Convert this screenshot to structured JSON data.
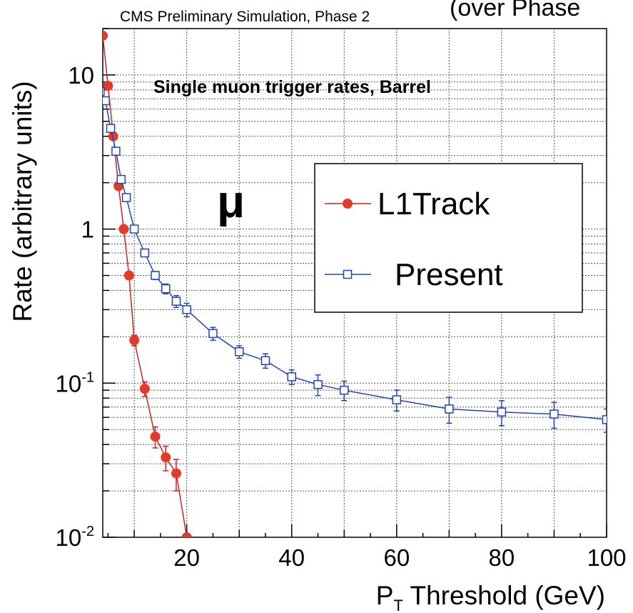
{
  "header": {
    "caption": "CMS Preliminary Simulation, Phase 2",
    "cut_text": "(over Phase"
  },
  "chart_data": {
    "type": "line",
    "title": "Single muon trigger rates, Barrel",
    "annotation": "μ",
    "xlabel": "P",
    "xlabel_sub": "T",
    "xlabel_rest": " Threshold (GeV)",
    "ylabel": "Rate (arbitrary units)",
    "xlim": [
      4,
      100
    ],
    "ylim": [
      0.01,
      20
    ],
    "yscale": "log",
    "grid": true,
    "legend_position": "upper-right",
    "x_ticks": [
      {
        "value": 20,
        "label": "20"
      },
      {
        "value": 40,
        "label": "40"
      },
      {
        "value": 60,
        "label": "60"
      },
      {
        "value": 80,
        "label": "80"
      },
      {
        "value": 100,
        "label": "100"
      }
    ],
    "y_ticks": [
      {
        "value": 10,
        "base": "10",
        "exp": ""
      },
      {
        "value": 1,
        "base": "1",
        "exp": ""
      },
      {
        "value": 0.1,
        "base": "10",
        "exp": "-1"
      },
      {
        "value": 0.01,
        "base": "10",
        "exp": "-2"
      }
    ],
    "series": [
      {
        "name": "L1Track",
        "color": "#cc2222",
        "marker": "filled-circle",
        "x": [
          4,
          5,
          6,
          7,
          8,
          9,
          10,
          12,
          14,
          16,
          18,
          20
        ],
        "y": [
          18,
          8.5,
          4.0,
          1.9,
          1.0,
          0.5,
          0.19,
          0.092,
          0.045,
          0.033,
          0.026,
          0.01
        ],
        "err": [
          0,
          0,
          0,
          0,
          0,
          0,
          0.015,
          0.01,
          0.007,
          0.006,
          0.006,
          0
        ]
      },
      {
        "name": "Present",
        "color": "#2244bb",
        "marker": "open-square",
        "x": [
          3.5,
          4.5,
          5.5,
          6.5,
          7.5,
          8.5,
          10,
          12,
          14,
          16,
          18,
          20,
          25,
          30,
          35,
          40,
          45,
          50,
          60,
          70,
          80,
          90,
          100
        ],
        "y": [
          7.8,
          6.8,
          4.5,
          3.2,
          2.1,
          1.6,
          1.0,
          0.7,
          0.5,
          0.41,
          0.34,
          0.3,
          0.21,
          0.16,
          0.14,
          0.11,
          0.098,
          0.09,
          0.078,
          0.068,
          0.065,
          0.063,
          0.058
        ],
        "err": [
          0,
          0,
          0,
          0,
          0,
          0,
          0,
          0,
          0.03,
          0.03,
          0.03,
          0.03,
          0.02,
          0.015,
          0.015,
          0.012,
          0.015,
          0.013,
          0.012,
          0.013,
          0.012,
          0.012,
          0.01
        ]
      }
    ]
  }
}
